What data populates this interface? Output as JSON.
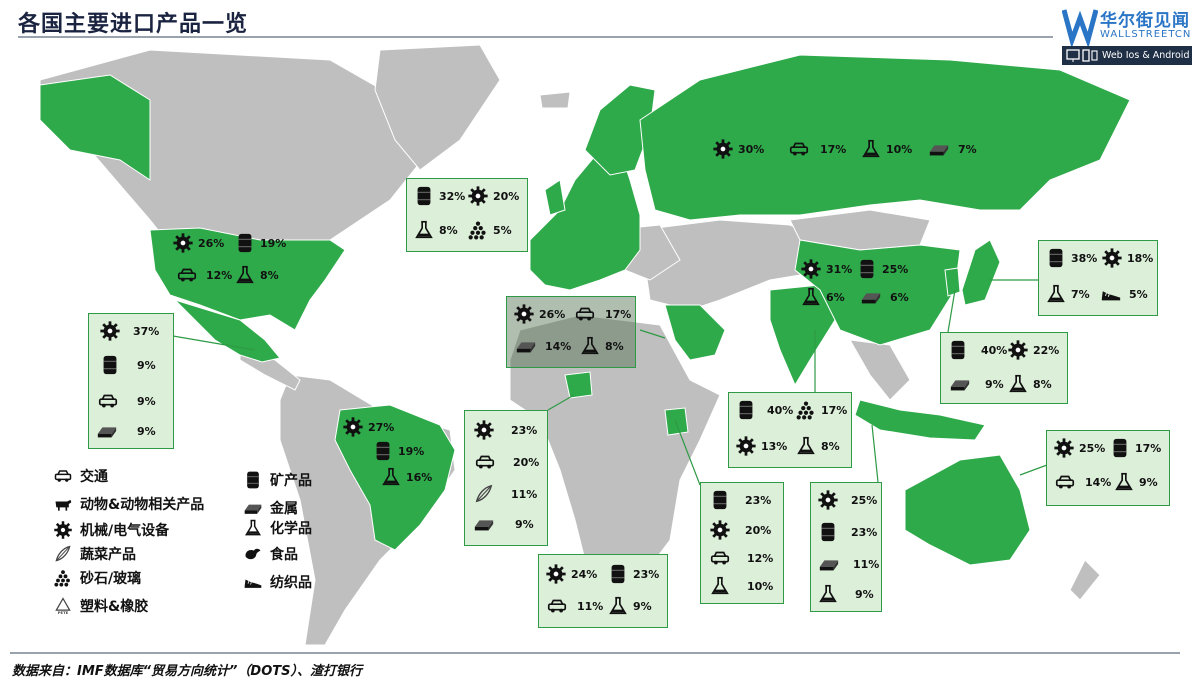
{
  "title": "各国主要进口产品一览",
  "logo": {
    "brand": "华尔街见闻",
    "sub": "WALLSTREETCN",
    "platforms": "Web  Ios & Android"
  },
  "footer": "数据来自：IMF数据库“贸易方向统计”（DOTS）、渣打银行",
  "colors": {
    "land": "#bfbfbf",
    "highlight": "#2eaa4a",
    "card_bg": "#dcefd9",
    "card_border": "#2f9a45"
  },
  "legend": [
    {
      "icon": "car-icon",
      "label": "交通"
    },
    {
      "icon": "cow-icon",
      "label": "动物&动物相关产品"
    },
    {
      "icon": "gear-icon",
      "label": "机械/电气设备"
    },
    {
      "icon": "leaf-icon",
      "label": "蔬菜产品"
    },
    {
      "icon": "stones-icon",
      "label": "砂石/玻璃"
    },
    {
      "icon": "recycle-icon",
      "label": "塑料&橡胶"
    },
    {
      "icon": "barrel-icon",
      "label": "矿产品"
    },
    {
      "icon": "ingot-icon",
      "label": "金属"
    },
    {
      "icon": "flask-icon",
      "label": "化学品"
    },
    {
      "icon": "food-icon",
      "label": "食品"
    },
    {
      "icon": "shoe-icon",
      "label": "纺织品"
    }
  ],
  "regions": [
    {
      "key": "usa",
      "items": [
        {
          "icon": "gear-icon",
          "value": "26%"
        },
        {
          "icon": "barrel-icon",
          "value": "19%"
        },
        {
          "icon": "car-icon",
          "value": "12%"
        },
        {
          "icon": "flask-icon",
          "value": "8%"
        }
      ]
    },
    {
      "key": "mexico",
      "items": [
        {
          "icon": "gear-icon",
          "value": "37%"
        },
        {
          "icon": "barrel-icon",
          "value": "9%"
        },
        {
          "icon": "car-icon",
          "value": "9%"
        },
        {
          "icon": "ingot-icon",
          "value": "9%"
        }
      ]
    },
    {
      "key": "brazil",
      "items": [
        {
          "icon": "gear-icon",
          "value": "27%"
        },
        {
          "icon": "barrel-icon",
          "value": "19%"
        },
        {
          "icon": "flask-icon",
          "value": "16%"
        }
      ]
    },
    {
      "key": "europe",
      "items": [
        {
          "icon": "barrel-icon",
          "value": "32%"
        },
        {
          "icon": "gear-icon",
          "value": "20%"
        },
        {
          "icon": "flask-icon",
          "value": "8%"
        },
        {
          "icon": "stones-icon",
          "value": "5%"
        }
      ]
    },
    {
      "key": "russia",
      "items": [
        {
          "icon": "gear-icon",
          "value": "30%"
        },
        {
          "icon": "car-icon",
          "value": "17%"
        },
        {
          "icon": "flask-icon",
          "value": "10%"
        },
        {
          "icon": "ingot-icon",
          "value": "7%"
        }
      ]
    },
    {
      "key": "middle_east",
      "items": [
        {
          "icon": "gear-icon",
          "value": "26%"
        },
        {
          "icon": "car-icon",
          "value": "17%"
        },
        {
          "icon": "ingot-icon",
          "value": "14%"
        },
        {
          "icon": "flask-icon",
          "value": "8%"
        }
      ]
    },
    {
      "key": "china",
      "items": [
        {
          "icon": "gear-icon",
          "value": "31%"
        },
        {
          "icon": "barrel-icon",
          "value": "25%"
        },
        {
          "icon": "flask-icon",
          "value": "6%"
        },
        {
          "icon": "ingot-icon",
          "value": "6%"
        }
      ]
    },
    {
      "key": "japan",
      "items": [
        {
          "icon": "barrel-icon",
          "value": "38%"
        },
        {
          "icon": "gear-icon",
          "value": "18%"
        },
        {
          "icon": "flask-icon",
          "value": "7%"
        },
        {
          "icon": "shoe-icon",
          "value": "5%"
        }
      ]
    },
    {
      "key": "korea",
      "items": [
        {
          "icon": "barrel-icon",
          "value": "40%"
        },
        {
          "icon": "gear-icon",
          "value": "22%"
        },
        {
          "icon": "ingot-icon",
          "value": "9%"
        },
        {
          "icon": "flask-icon",
          "value": "8%"
        }
      ]
    },
    {
      "key": "india",
      "items": [
        {
          "icon": "barrel-icon",
          "value": "40%"
        },
        {
          "icon": "stones-icon",
          "value": "17%"
        },
        {
          "icon": "gear-icon",
          "value": "13%"
        },
        {
          "icon": "flask-icon",
          "value": "8%"
        }
      ]
    },
    {
      "key": "nigeria",
      "items": [
        {
          "icon": "gear-icon",
          "value": "23%"
        },
        {
          "icon": "car-icon",
          "value": "20%"
        },
        {
          "icon": "leaf-icon",
          "value": "11%"
        },
        {
          "icon": "ingot-icon",
          "value": "9%"
        }
      ]
    },
    {
      "key": "south_africa",
      "items": [
        {
          "icon": "gear-icon",
          "value": "24%"
        },
        {
          "icon": "barrel-icon",
          "value": "23%"
        },
        {
          "icon": "car-icon",
          "value": "11%"
        },
        {
          "icon": "flask-icon",
          "value": "9%"
        }
      ]
    },
    {
      "key": "kenya",
      "items": [
        {
          "icon": "barrel-icon",
          "value": "23%"
        },
        {
          "icon": "gear-icon",
          "value": "20%"
        },
        {
          "icon": "car-icon",
          "value": "12%"
        },
        {
          "icon": "flask-icon",
          "value": "10%"
        }
      ]
    },
    {
      "key": "indonesia",
      "items": [
        {
          "icon": "gear-icon",
          "value": "25%"
        },
        {
          "icon": "barrel-icon",
          "value": "23%"
        },
        {
          "icon": "ingot-icon",
          "value": "11%"
        },
        {
          "icon": "flask-icon",
          "value": "9%"
        }
      ]
    },
    {
      "key": "australia",
      "items": [
        {
          "icon": "gear-icon",
          "value": "25%"
        },
        {
          "icon": "barrel-icon",
          "value": "17%"
        },
        {
          "icon": "car-icon",
          "value": "14%"
        },
        {
          "icon": "flask-icon",
          "value": "9%"
        }
      ]
    }
  ]
}
